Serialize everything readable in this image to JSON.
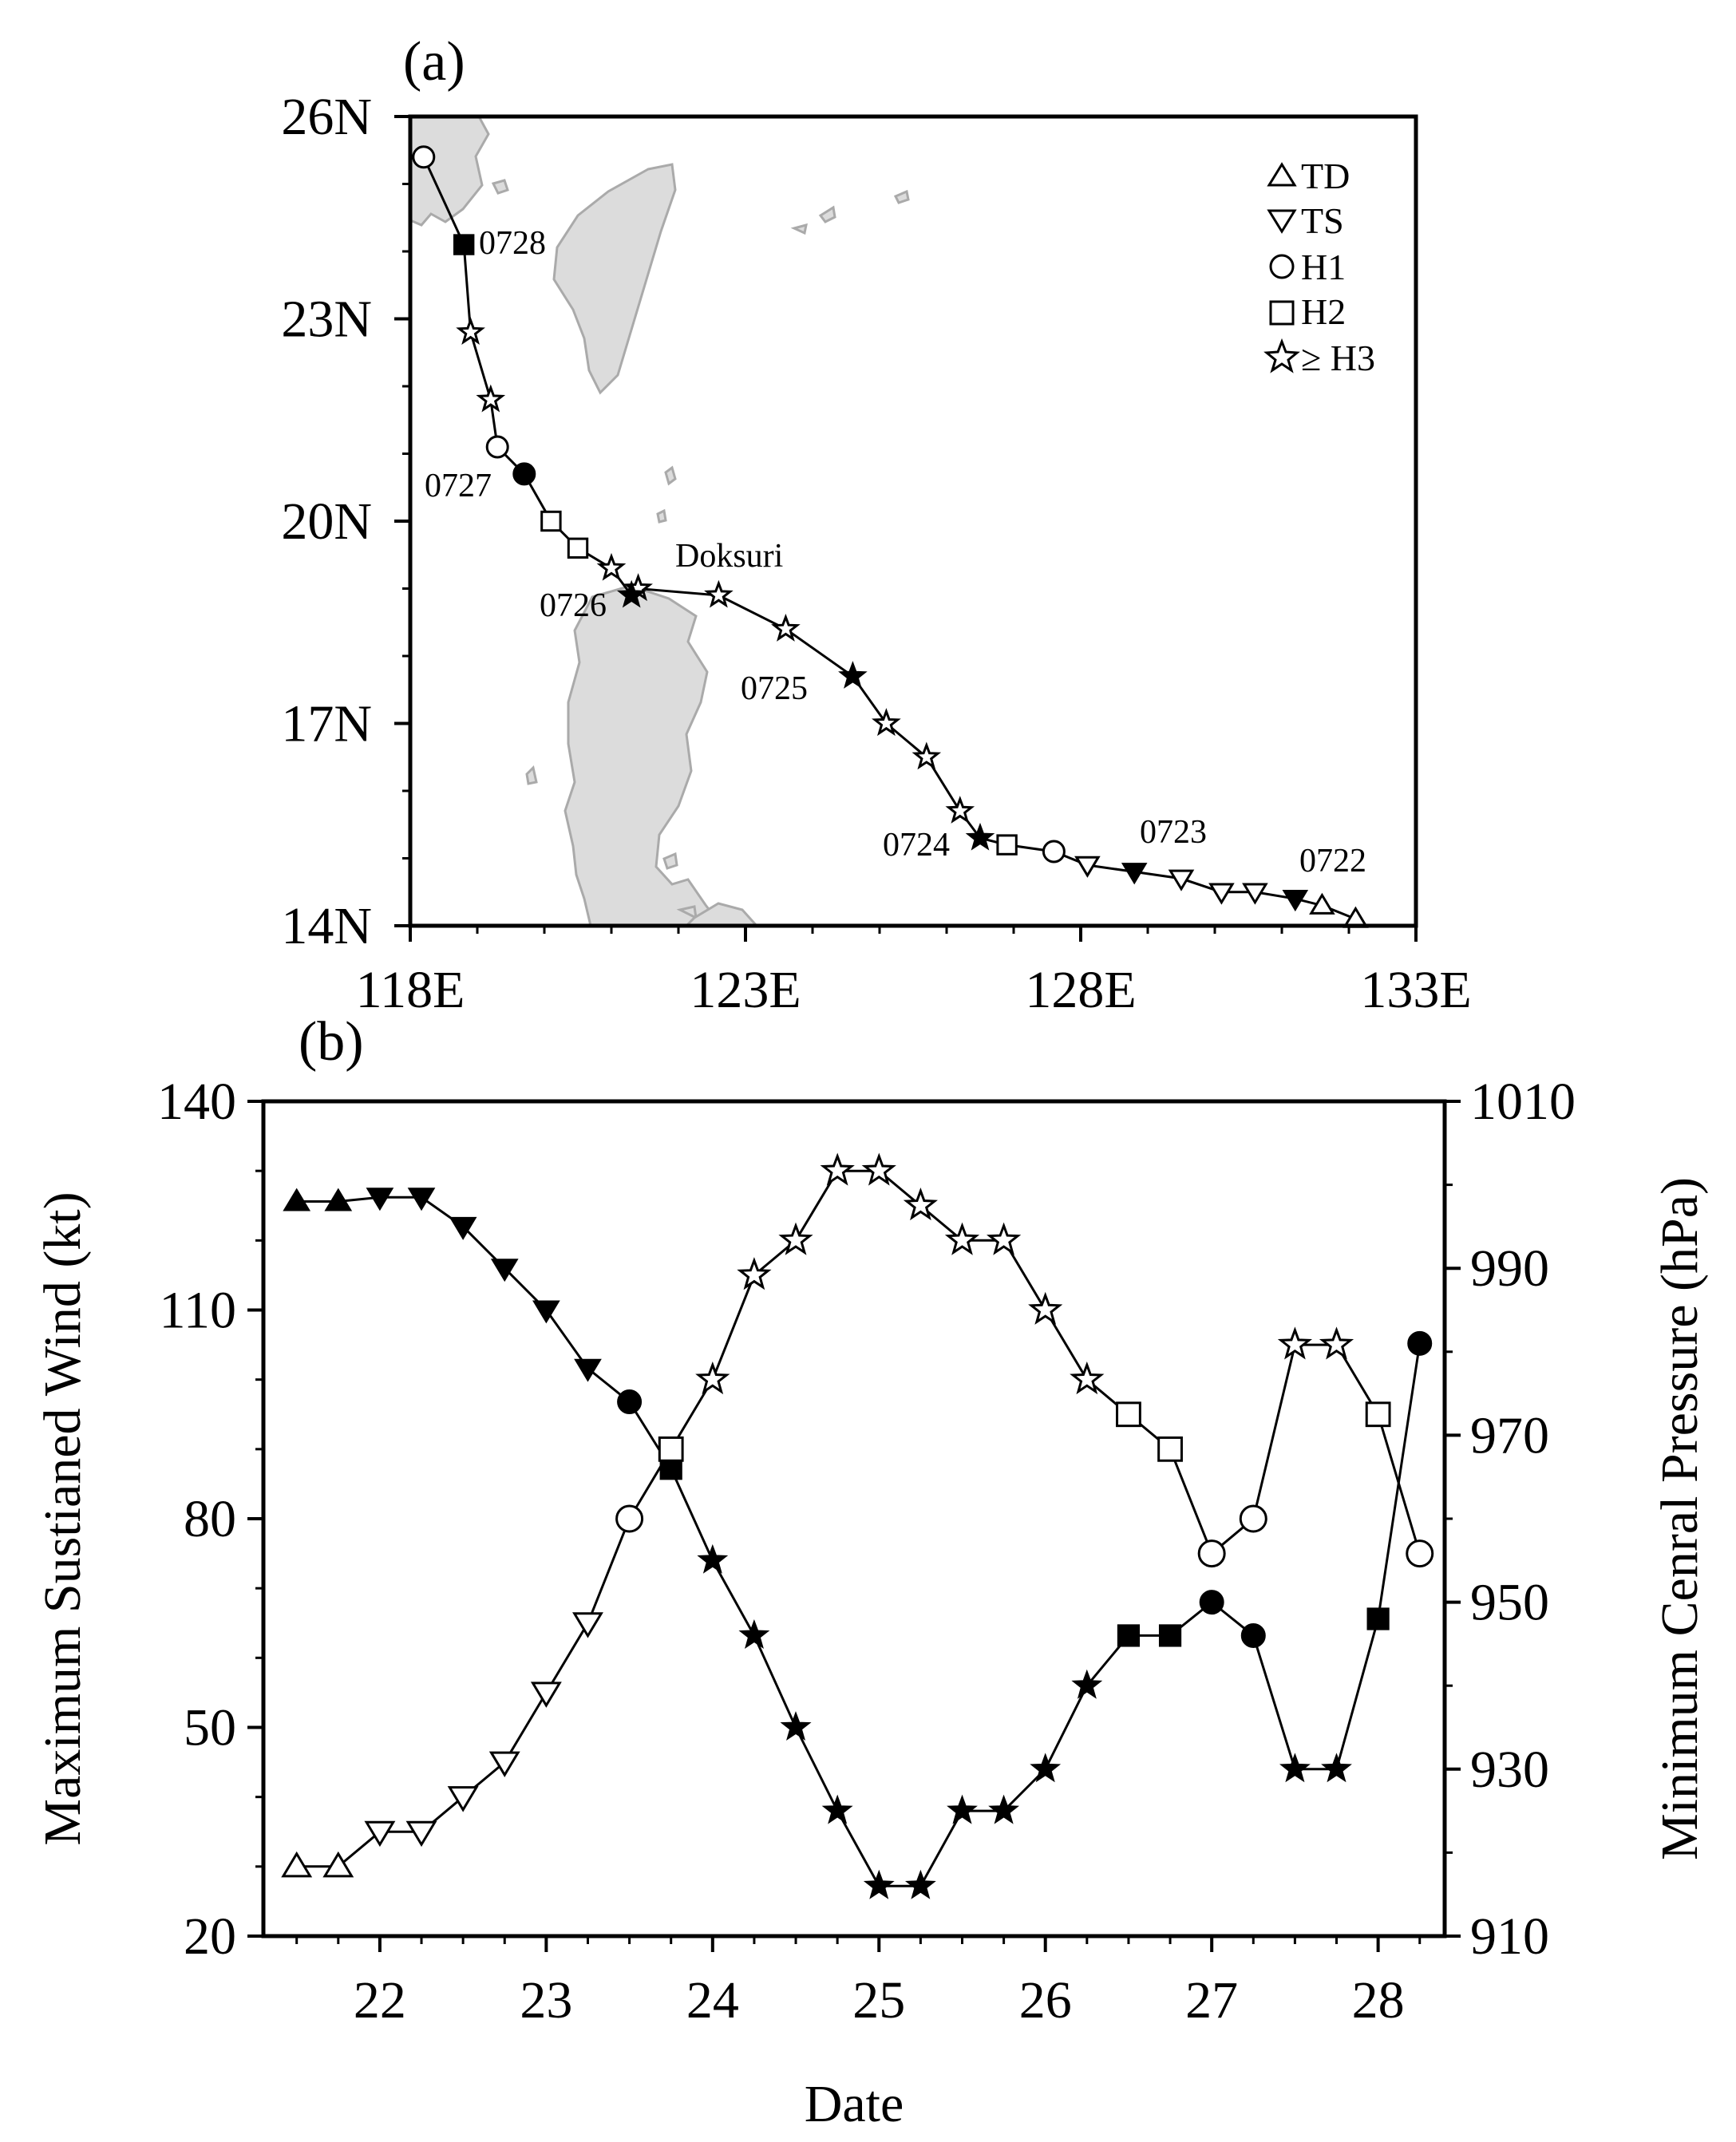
{
  "panel_a": {
    "label": "(a)",
    "storm_name": "Doksuri",
    "x_ticks": [
      "118E",
      "123E",
      "128E",
      "133E"
    ],
    "y_ticks": [
      "14N",
      "17N",
      "20N",
      "23N",
      "26N"
    ],
    "legend": [
      {
        "symbol": "tri-up",
        "label": "TD"
      },
      {
        "symbol": "tri-down",
        "label": "TS"
      },
      {
        "symbol": "circle",
        "label": "H1"
      },
      {
        "symbol": "square",
        "label": "H2"
      },
      {
        "symbol": "star",
        "label": "≥ H3"
      }
    ],
    "date_labels": [
      "0722",
      "0723",
      "0724",
      "0725",
      "0726",
      "0727",
      "0728"
    ],
    "colors": {
      "land": "#dcdcdc",
      "coast": "#aaaaaa",
      "track": "#000000"
    }
  },
  "panel_b": {
    "label": "(b)",
    "xlabel": "Date",
    "ylabel_left": "Maximum Sustianed Wind (kt)",
    "ylabel_right": "Minimum Cenral Pressure (hPa)",
    "x_ticks": [
      "22",
      "23",
      "24",
      "25",
      "26",
      "27",
      "28"
    ],
    "y_ticks_left": [
      "20",
      "50",
      "80",
      "110",
      "140"
    ],
    "y_ticks_right": [
      "910",
      "930",
      "950",
      "970",
      "990",
      "1010"
    ]
  },
  "chart_data": [
    {
      "type": "scatter",
      "title": "",
      "xlabel": "",
      "ylabel": "",
      "xlim": [
        118,
        133
      ],
      "ylim": [
        14,
        26
      ],
      "x_unit": "degrees E",
      "y_unit": "degrees N",
      "series": [
        {
          "points": [
            {
              "lon": 132.1,
              "lat": 14.1,
              "cat": "TD",
              "filled": false
            },
            {
              "lon": 131.6,
              "lat": 14.3,
              "cat": "TD",
              "filled": false
            },
            {
              "lon": 131.2,
              "lat": 14.4,
              "cat": "TS",
              "filled": true
            },
            {
              "lon": 130.6,
              "lat": 14.5,
              "cat": "TS",
              "filled": false
            },
            {
              "lon": 130.1,
              "lat": 14.5,
              "cat": "TS",
              "filled": false
            },
            {
              "lon": 129.5,
              "lat": 14.7,
              "cat": "TS",
              "filled": false
            },
            {
              "lon": 128.8,
              "lat": 14.8,
              "cat": "TS",
              "filled": true
            },
            {
              "lon": 128.1,
              "lat": 14.9,
              "cat": "TS",
              "filled": false
            },
            {
              "lon": 127.6,
              "lat": 15.1,
              "cat": "H1",
              "filled": false
            },
            {
              "lon": 126.9,
              "lat": 15.2,
              "cat": "H2",
              "filled": false
            },
            {
              "lon": 126.5,
              "lat": 15.3,
              "cat": "H3",
              "filled": true
            },
            {
              "lon": 126.2,
              "lat": 15.7,
              "cat": "H3",
              "filled": false
            },
            {
              "lon": 125.7,
              "lat": 16.5,
              "cat": "H3",
              "filled": false
            },
            {
              "lon": 125.1,
              "lat": 17.0,
              "cat": "H3",
              "filled": false
            },
            {
              "lon": 124.6,
              "lat": 17.7,
              "cat": "H3",
              "filled": true
            },
            {
              "lon": 123.6,
              "lat": 18.4,
              "cat": "H3",
              "filled": false
            },
            {
              "lon": 122.6,
              "lat": 18.9,
              "cat": "H3",
              "filled": false
            },
            {
              "lon": 121.4,
              "lat": 19.0,
              "cat": "H3",
              "filled": false
            },
            {
              "lon": 121.3,
              "lat": 18.9,
              "cat": "H3",
              "filled": true
            },
            {
              "lon": 121.0,
              "lat": 19.3,
              "cat": "H3",
              "filled": false
            },
            {
              "lon": 120.5,
              "lat": 19.6,
              "cat": "H2",
              "filled": false
            },
            {
              "lon": 120.1,
              "lat": 20.0,
              "cat": "H2",
              "filled": false
            },
            {
              "lon": 119.7,
              "lat": 20.7,
              "cat": "H1",
              "filled": true
            },
            {
              "lon": 119.3,
              "lat": 21.1,
              "cat": "H1",
              "filled": false
            },
            {
              "lon": 119.2,
              "lat": 21.8,
              "cat": "H3",
              "filled": false
            },
            {
              "lon": 118.9,
              "lat": 22.8,
              "cat": "H3",
              "filled": false
            },
            {
              "lon": 118.8,
              "lat": 24.1,
              "cat": "H2",
              "filled": true
            },
            {
              "lon": 118.2,
              "lat": 25.4,
              "cat": "H1",
              "filled": false
            }
          ]
        }
      ]
    },
    {
      "type": "line",
      "title": "",
      "xlabel": "Date",
      "ylabel": "Maximum Sustianed Wind (kt)",
      "ylabel_right": "Minimum Cenral Pressure (hPa)",
      "xlim": [
        21.3,
        28.4
      ],
      "ylim": [
        20,
        140
      ],
      "ylim_right": [
        910,
        1010
      ],
      "x": [
        21.5,
        21.75,
        22.0,
        22.25,
        22.5,
        22.75,
        23.0,
        23.25,
        23.5,
        23.75,
        24.0,
        24.25,
        24.5,
        24.75,
        25.0,
        25.25,
        25.5,
        25.75,
        26.0,
        26.25,
        26.5,
        26.75,
        27.0,
        27.25,
        27.5,
        27.75,
        28.0,
        28.25
      ],
      "categories_stage": [
        "TD",
        "TD",
        "TS",
        "TS",
        "TS",
        "TS",
        "TS",
        "TS",
        "H1",
        "H2",
        "H3",
        "H3",
        "H3",
        "H3",
        "H3",
        "H3",
        "H3",
        "H3",
        "H3",
        "H3",
        "H2",
        "H2",
        "H1",
        "H1",
        "H3",
        "H3",
        "H2",
        "H1"
      ],
      "series": [
        {
          "axis": "left",
          "marker_fill": "open",
          "values": [
            30,
            30,
            35,
            35,
            40,
            45,
            55,
            65,
            80,
            90,
            100,
            115,
            120,
            130,
            130,
            125,
            120,
            120,
            110,
            100,
            95,
            90,
            75,
            80,
            105,
            105,
            95,
            75
          ]
        },
        {
          "axis": "right",
          "marker_fill": "filled",
          "values": [
            998,
            998,
            998.5,
            998.5,
            995,
            990,
            985,
            978,
            974,
            966,
            955,
            946,
            935,
            925,
            916,
            916,
            925,
            925,
            930,
            940,
            946,
            946,
            950,
            946,
            930,
            930,
            948,
            981
          ]
        }
      ]
    }
  ]
}
